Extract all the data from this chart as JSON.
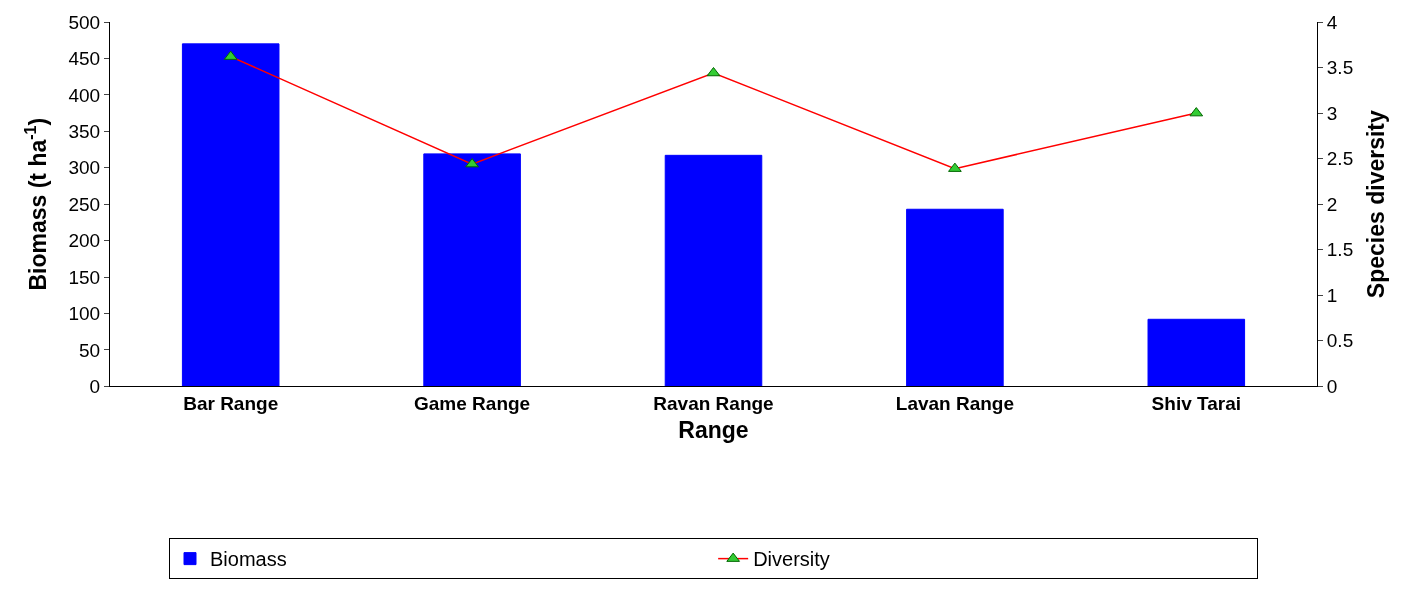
{
  "chart_data": {
    "type": "bar",
    "xlabel": "Range",
    "ylabel": "Biomass (t ha$^{-1}$)",
    "y2label": "Species diversity",
    "categories": [
      "Bar Range",
      "Game Range",
      "Ravan Range",
      "Lavan Range",
      "Shiv Tarai"
    ],
    "series": [
      {
        "name": "Biomass",
        "color": "#0000ff",
        "values": [
          470,
          319,
          317,
          243,
          92
        ]
      },
      {
        "name": "Diversity",
        "type": "line",
        "axis": "y2",
        "color": "#ff0000",
        "marker": "triangle",
        "values": [
          3.62,
          2.44,
          3.44,
          2.39,
          3.0
        ]
      }
    ],
    "ylim": [
      0,
      500
    ],
    "yticks": [
      0,
      50,
      100,
      150,
      200,
      250,
      300,
      350,
      400,
      450,
      500
    ],
    "y2lim": [
      0,
      4
    ],
    "y2ticks": [
      0,
      0.5,
      1,
      1.5,
      2,
      2.5,
      3,
      3.5,
      4
    ],
    "grid": false,
    "legend": "bottom"
  }
}
